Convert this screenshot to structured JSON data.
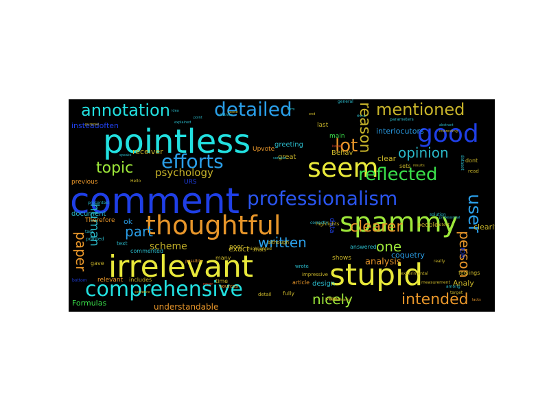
{
  "palette": {
    "cyan": "#22e0e0",
    "blue": "#1f3fe6",
    "blue2": "#2a55f0",
    "yellow": "#e8e83a",
    "orange": "#e8962a",
    "lime": "#9ee83a",
    "green": "#3ae04a",
    "teal": "#2ab8c8",
    "red": "#e0462a",
    "sky": "#2a9ee8",
    "olive": "#c8b42a"
  },
  "words": [
    {
      "text": "comment",
      "c": "blue"
    },
    {
      "text": "pointless",
      "c": "cyan"
    },
    {
      "text": "irrelevant",
      "c": "yellow"
    },
    {
      "text": "spammy",
      "c": "lime"
    },
    {
      "text": "stupid",
      "c": "yellow"
    },
    {
      "text": "thoughtful",
      "c": "orange"
    },
    {
      "text": "good",
      "c": "blue"
    },
    {
      "text": "seem",
      "c": "yellow"
    },
    {
      "text": "comprehensive",
      "c": "cyan"
    },
    {
      "text": "professionalism",
      "c": "blue2"
    },
    {
      "text": "detailed",
      "c": "sky"
    },
    {
      "text": "annotation",
      "c": "cyan"
    },
    {
      "text": "efforts",
      "c": "sky"
    },
    {
      "text": "reflected",
      "c": "green"
    },
    {
      "text": "mentioned",
      "c": "olive"
    },
    {
      "text": "topic",
      "c": "lime"
    },
    {
      "text": "lot",
      "c": "orange"
    },
    {
      "text": "reason",
      "c": "olive"
    },
    {
      "text": "opinion",
      "c": "teal"
    },
    {
      "text": "clearer",
      "c": "orange"
    },
    {
      "text": "intended",
      "c": "orange"
    },
    {
      "text": "user",
      "c": "sky"
    },
    {
      "text": "person",
      "c": "orange"
    },
    {
      "text": "written",
      "c": "sky"
    },
    {
      "text": "nicely",
      "c": "lime"
    },
    {
      "text": "paper",
      "c": "orange"
    },
    {
      "text": "human",
      "c": "teal"
    },
    {
      "text": "part",
      "c": "sky"
    },
    {
      "text": "one",
      "c": "lime"
    },
    {
      "text": "psychology",
      "c": "olive"
    },
    {
      "text": "scheme",
      "c": "olive"
    },
    {
      "text": "analysis",
      "c": "orange"
    },
    {
      "text": "understandable",
      "c": "orange"
    },
    {
      "text": "coquetry",
      "c": "sky"
    },
    {
      "text": "clearly",
      "c": "olive"
    },
    {
      "text": "interlocutors",
      "c": "sky"
    },
    {
      "text": "insteadoften",
      "c": "blue"
    },
    {
      "text": "receiver",
      "c": "olive"
    },
    {
      "text": "greeting",
      "c": "teal"
    },
    {
      "text": "great",
      "c": "olive"
    },
    {
      "text": "Upvote",
      "c": "orange"
    },
    {
      "text": "poor",
      "c": "olive"
    },
    {
      "text": "Behav",
      "c": "olive"
    },
    {
      "text": "clear",
      "c": "olive"
    },
    {
      "text": "main",
      "c": "green"
    },
    {
      "text": "last",
      "c": "olive"
    },
    {
      "text": "sets",
      "c": "olive"
    },
    {
      "text": "dont",
      "c": "olive"
    },
    {
      "text": "answered",
      "c": "teal"
    },
    {
      "text": "people",
      "c": "olive"
    },
    {
      "text": "document",
      "c": "teal"
    },
    {
      "text": "ok",
      "c": "sky"
    },
    {
      "text": "Therefore",
      "c": "orange"
    },
    {
      "text": "exact",
      "c": "olive"
    },
    {
      "text": "time",
      "c": "olive"
    },
    {
      "text": "shows",
      "c": "olive"
    },
    {
      "text": "design",
      "c": "teal"
    },
    {
      "text": "detail",
      "c": "olive"
    },
    {
      "text": "article",
      "c": "orange"
    },
    {
      "text": "fully",
      "c": "olive"
    },
    {
      "text": "relevant",
      "c": "orange"
    },
    {
      "text": "includes",
      "c": "olive"
    },
    {
      "text": "Formulas",
      "c": "green"
    },
    {
      "text": "previous",
      "c": "orange"
    },
    {
      "text": "gave",
      "c": "olive"
    },
    {
      "text": "commented",
      "c": "teal"
    },
    {
      "text": "text",
      "c": "teal"
    },
    {
      "text": "many",
      "c": "olive"
    },
    {
      "text": "data",
      "c": "blue"
    },
    {
      "text": "IOR",
      "c": "blue"
    },
    {
      "text": "Analy",
      "c": "olive"
    },
    {
      "text": "feelings",
      "c": "olive"
    },
    {
      "text": "highlights",
      "c": "olive"
    },
    {
      "text": "highlighted",
      "c": "olive"
    },
    {
      "text": "URS",
      "c": "blue"
    },
    {
      "text": "although",
      "c": "olive"
    },
    {
      "text": "sources",
      "c": "orange"
    },
    {
      "text": "thats",
      "c": "olive"
    },
    {
      "text": "wrote",
      "c": "teal"
    },
    {
      "text": "impressive",
      "c": "olive"
    },
    {
      "text": "pointed",
      "c": "teal"
    },
    {
      "text": "possible",
      "c": "orange"
    },
    {
      "text": "read",
      "c": "olive"
    },
    {
      "text": "dataset",
      "c": "teal"
    },
    {
      "text": "detect",
      "c": "olive"
    },
    {
      "text": "parameters",
      "c": "teal"
    },
    {
      "text": "correctly",
      "c": "teal"
    },
    {
      "text": "Hello",
      "c": "olive"
    },
    {
      "text": "task",
      "c": "teal"
    },
    {
      "text": "bottom",
      "c": "blue"
    },
    {
      "text": "solution",
      "c": "teal"
    },
    {
      "text": "really",
      "c": "olive"
    },
    {
      "text": "world",
      "c": "olive"
    },
    {
      "text": "measurement",
      "c": "olive"
    },
    {
      "text": "among",
      "c": "teal"
    },
    {
      "text": "target",
      "c": "olive"
    },
    {
      "text": "general",
      "c": "teal"
    },
    {
      "text": "explained",
      "c": "teal"
    },
    {
      "text": "experimental",
      "c": "olive"
    },
    {
      "text": "abstract",
      "c": "teal"
    },
    {
      "text": "results",
      "c": "olive"
    },
    {
      "text": "presented",
      "c": "teal"
    },
    {
      "text": "professional",
      "c": "teal"
    },
    {
      "text": "benchmarks",
      "c": "olive"
    },
    {
      "text": "speaks",
      "c": "teal"
    },
    {
      "text": "concise",
      "c": "teal"
    },
    {
      "text": "never",
      "c": "red"
    },
    {
      "text": "lacks",
      "c": "orange"
    },
    {
      "text": "issues",
      "c": "red"
    },
    {
      "text": "purpose",
      "c": "olive"
    },
    {
      "text": "citations",
      "c": "teal"
    },
    {
      "text": "interesting",
      "c": "olive"
    },
    {
      "text": "format",
      "c": "olive"
    },
    {
      "text": "sentence",
      "c": "olive"
    },
    {
      "text": "point",
      "c": "teal"
    },
    {
      "text": "idea",
      "c": "teal"
    },
    {
      "text": "cause",
      "c": "olive"
    },
    {
      "text": "form",
      "c": "teal"
    },
    {
      "text": "end",
      "c": "olive"
    },
    {
      "text": "think",
      "c": "teal"
    },
    {
      "text": "found",
      "c": "olive"
    }
  ]
}
